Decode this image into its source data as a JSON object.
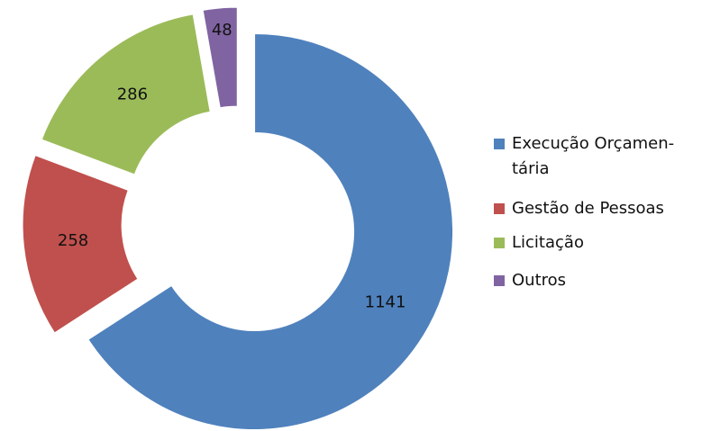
{
  "chart_data": {
    "type": "donut",
    "series": [
      {
        "name": "Execução Orçamen-tária",
        "color": "#4f81bd",
        "values": [
          1141
        ]
      },
      {
        "name": "Gestão de Pessoas",
        "color": "#c0504d",
        "values": [
          258
        ]
      },
      {
        "name": "Licitação",
        "color": "#9bbb59",
        "values": [
          286
        ]
      },
      {
        "name": "Outros",
        "color": "#8064a2",
        "values": [
          48
        ]
      }
    ],
    "legend": "right"
  }
}
